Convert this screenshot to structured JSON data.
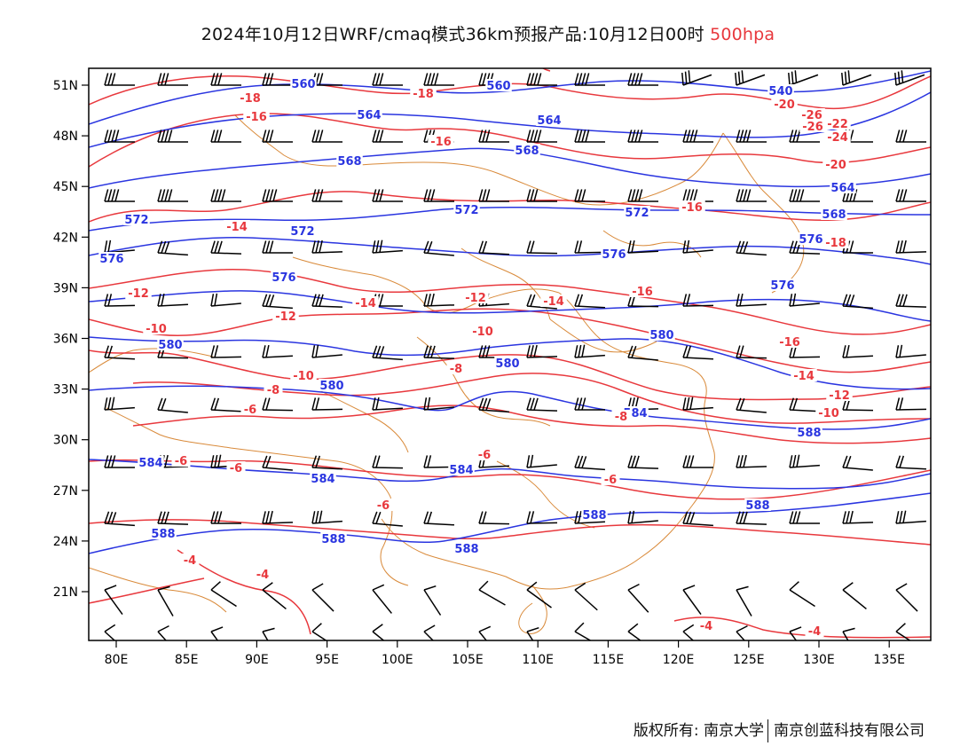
{
  "title": {
    "main": "2024年10月12日WRF/cmaq模式36km预报产品:10月12日00时",
    "level": "500hpa"
  },
  "colors": {
    "height": "#2a35e0",
    "temperature": "#e8383d",
    "boundary": "#d98a3a",
    "wind": "#000000"
  },
  "axes": {
    "lon_ticks": [
      "80E",
      "85E",
      "90E",
      "95E",
      "100E",
      "105E",
      "110E",
      "115E",
      "120E",
      "125E",
      "130E",
      "135E"
    ],
    "lat_ticks": [
      "51N",
      "48N",
      "45N",
      "42N",
      "39N",
      "36N",
      "33N",
      "30N",
      "27N",
      "24N",
      "21N"
    ]
  },
  "contour_labels": {
    "height": [
      "560",
      "560",
      "540",
      "564",
      "564",
      "568",
      "568",
      "564",
      "572",
      "572",
      "572",
      "572",
      "576",
      "576",
      "576",
      "576",
      "576",
      "568",
      "580",
      "580",
      "580",
      "580",
      "584",
      "584",
      "584",
      "584",
      "588",
      "588",
      "588",
      "588",
      "588",
      "588"
    ],
    "temperature": [
      "-18",
      "-18",
      "-16",
      "-16",
      "-20",
      "-26",
      "-26",
      "-24",
      "-22",
      "-20",
      "-16",
      "-18",
      "-14",
      "-14",
      "-12",
      "-12",
      "-12",
      "-14",
      "-16",
      "-10",
      "-10",
      "-16",
      "-8",
      "-10",
      "-8",
      "-6",
      "-14",
      "-12",
      "-10",
      "-8",
      "-6",
      "-6",
      "-6",
      "-6",
      "-6",
      "-4",
      "-4",
      "-4",
      "-4"
    ]
  },
  "footer": {
    "copyright": "版权所有: 南京大学",
    "company": "南京创蓝科技有限公司"
  }
}
